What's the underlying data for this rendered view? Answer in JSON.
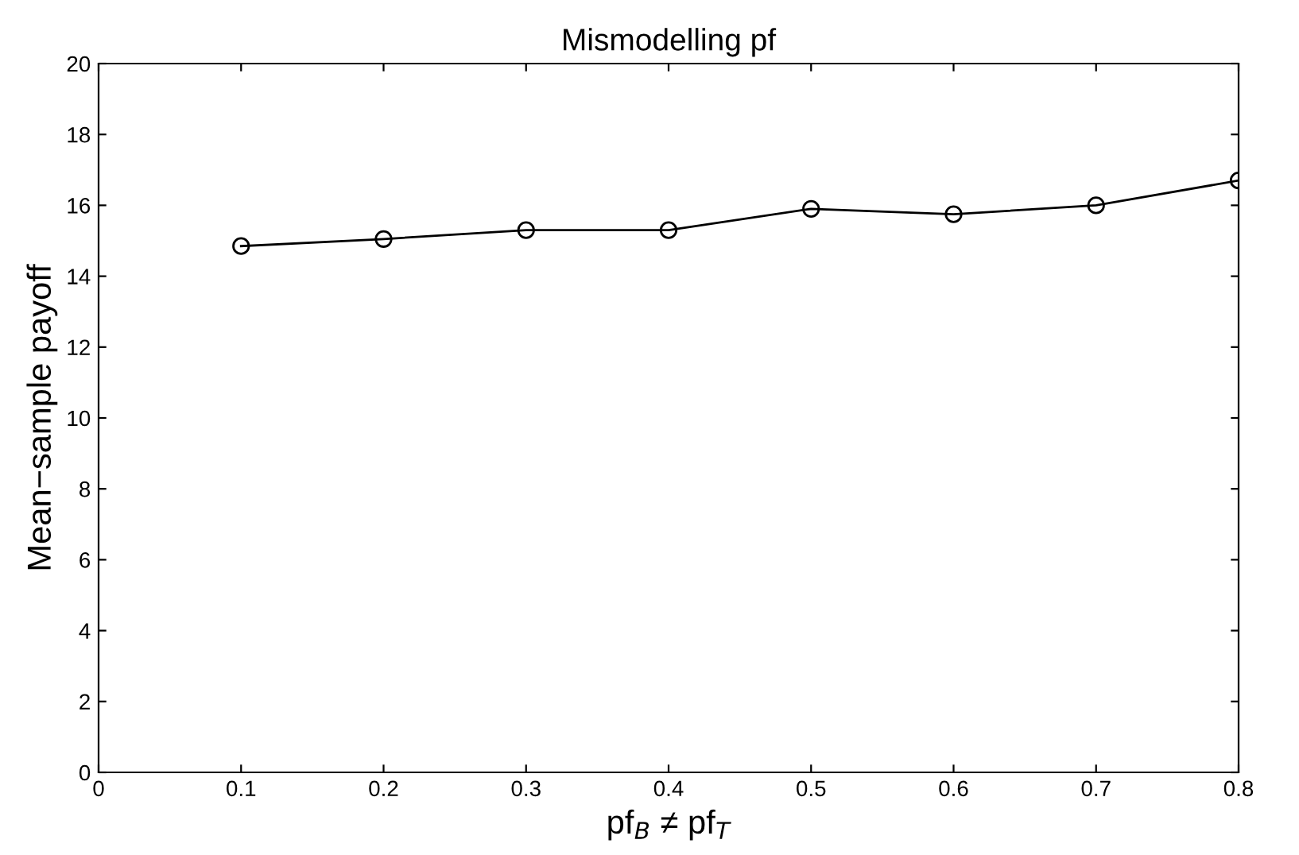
{
  "chart_data": {
    "type": "line",
    "title": "Mismodelling pf",
    "xlabel": "pf$_{B}$ ≠ pf$_{T}$",
    "ylabel": "Mean−sample payoff",
    "x": [
      0.1,
      0.2,
      0.3,
      0.4,
      0.5,
      0.6,
      0.7,
      0.8
    ],
    "series": [
      {
        "color": "#000000",
        "values": [
          14.85,
          15.05,
          15.3,
          15.3,
          15.9,
          15.75,
          16.0,
          16.7
        ]
      }
    ],
    "marker": "circle",
    "line_style": "solid",
    "grid": false,
    "xlim": [
      0,
      0.8
    ],
    "xticks": [
      0,
      0.1,
      0.2,
      0.3,
      0.4,
      0.5,
      0.6,
      0.7,
      0.8
    ],
    "ylim": [
      0,
      20
    ],
    "yticks": [
      0,
      2,
      4,
      6,
      8,
      10,
      12,
      14,
      16,
      18,
      20
    ]
  }
}
